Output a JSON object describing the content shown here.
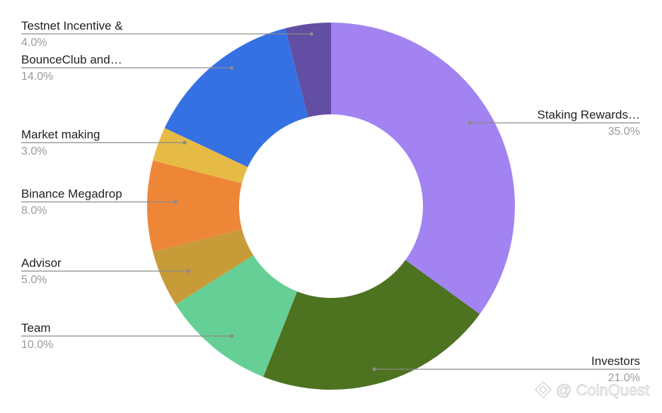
{
  "chart_data": {
    "type": "pie",
    "donut": true,
    "legend": "leader-line labels around chart",
    "slices": [
      {
        "label": "Staking Rewards…",
        "value": 35.0,
        "pct_label": "35.0%",
        "color": "#a283f1"
      },
      {
        "label": "Investors",
        "value": 21.0,
        "pct_label": "21.0%",
        "color": "#4d7220"
      },
      {
        "label": "Team",
        "value": 10.0,
        "pct_label": "10.0%",
        "color": "#66cf95"
      },
      {
        "label": "Advisor",
        "value": 5.0,
        "pct_label": "5.0%",
        "color": "#c89b39"
      },
      {
        "label": "Binance Megadrop",
        "value": 8.0,
        "pct_label": "8.0%",
        "color": "#ee8638"
      },
      {
        "label": "Market making",
        "value": 3.0,
        "pct_label": "3.0%",
        "color": "#e6bb45"
      },
      {
        "label": "BounceClub and…",
        "value": 14.0,
        "pct_label": "14.0%",
        "color": "#3571e3"
      },
      {
        "label": "Testnet Incentive &",
        "value": 4.0,
        "pct_label": "4.0%",
        "color": "#624ea2"
      }
    ]
  },
  "watermark": {
    "text": "@ CoinQuest"
  }
}
